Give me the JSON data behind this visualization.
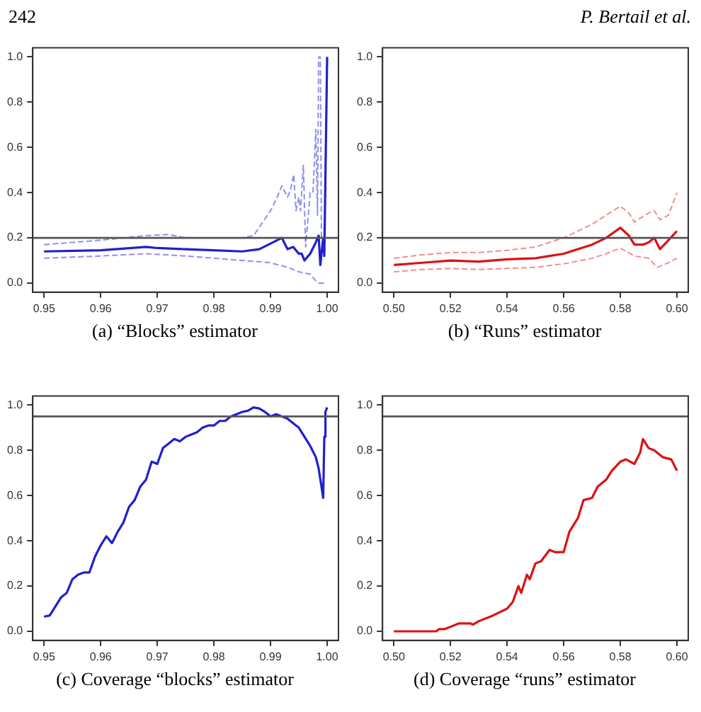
{
  "chart_data": [
    {
      "type": "line",
      "title": "(a) “Blocks” estimator",
      "annotations": [
        "242"
      ],
      "xlim": [
        0.948,
        1.002
      ],
      "ylim": [
        -0.04,
        1.04
      ],
      "xticks": [
        {
          "value": 0.95,
          "label": "0.95"
        },
        {
          "value": 0.96,
          "label": "0.96"
        },
        {
          "value": 0.97,
          "label": "0.97"
        },
        {
          "value": 0.98,
          "label": "0.98"
        },
        {
          "value": 0.99,
          "label": "0.99"
        },
        {
          "value": 1,
          "label": "1.00"
        }
      ],
      "yticks": [
        {
          "value": 0,
          "label": "0.0"
        },
        {
          "value": 0.2,
          "label": "0.2"
        },
        {
          "value": 0.4,
          "label": "0.4"
        },
        {
          "value": 0.6,
          "label": "0.6"
        },
        {
          "value": 0.8,
          "label": "0.8"
        },
        {
          "value": 1,
          "label": "1.0"
        }
      ],
      "grid": false,
      "legend": false,
      "marker": "none",
      "ref_lines": [
        {
          "axis": "y",
          "value": 0.2,
          "color": "#555555"
        }
      ],
      "series": [
        {
          "color": "#9090ee",
          "line_style": "dashed",
          "x": [
            0.95,
            0.96,
            0.968,
            0.972,
            0.975,
            0.98,
            0.985,
            0.987,
            0.99,
            0.991,
            0.992,
            0.993,
            0.9935,
            0.9941,
            0.9945,
            0.995,
            0.9953,
            0.9958,
            0.9962,
            0.997,
            0.9975,
            0.998,
            0.9983,
            0.9985,
            0.9988,
            0.999
          ],
          "values": [
            0.17,
            0.19,
            0.21,
            0.215,
            0.2,
            0.2,
            0.2,
            0.21,
            0.32,
            0.37,
            0.43,
            0.38,
            0.41,
            0.48,
            0.32,
            0.38,
            0.32,
            0.52,
            0.16,
            0.4,
            0.4,
            0.68,
            0.3,
            1.0,
            1.0,
            0.2
          ]
        },
        {
          "color": "#9090ee",
          "line_style": "dashed",
          "x": [
            0.95,
            0.96,
            0.968,
            0.975,
            0.98,
            0.985,
            0.99,
            0.993,
            0.995,
            0.997,
            0.998,
            0.9985,
            0.9998
          ],
          "values": [
            0.11,
            0.12,
            0.13,
            0.12,
            0.11,
            0.1,
            0.09,
            0.07,
            0.05,
            0.04,
            0.01,
            0.0,
            0.0
          ]
        },
        {
          "color": "#2020cc",
          "line_style": "solid",
          "x": [
            0.95,
            0.96,
            0.968,
            0.97,
            0.975,
            0.98,
            0.985,
            0.988,
            0.99,
            0.992,
            0.993,
            0.994,
            0.995,
            0.9955,
            0.996,
            0.997,
            0.998,
            0.9985,
            0.9988,
            0.9993,
            0.9995,
            1.0
          ],
          "values": [
            0.14,
            0.145,
            0.16,
            0.155,
            0.15,
            0.145,
            0.14,
            0.15,
            0.175,
            0.2,
            0.15,
            0.16,
            0.13,
            0.13,
            0.1,
            0.13,
            0.18,
            0.21,
            0.08,
            0.2,
            0.12,
            1.0
          ]
        }
      ]
    },
    {
      "type": "line",
      "title": "(b) “Runs” estimator",
      "annotations": [
        "P. Bertail et al."
      ],
      "xlim": [
        0.496,
        0.604
      ],
      "ylim": [
        -0.04,
        1.04
      ],
      "xticks": [
        {
          "value": 0.5,
          "label": "0.50"
        },
        0.52,
        0.54,
        0.56,
        0.58,
        {
          "value": 0.6,
          "label": "0.60"
        }
      ],
      "yticks": [
        {
          "value": 0,
          "label": "0.0"
        },
        {
          "value": 0.2,
          "label": "0.2"
        },
        {
          "value": 0.4,
          "label": "0.4"
        },
        {
          "value": 0.6,
          "label": "0.6"
        },
        {
          "value": 0.8,
          "label": "0.8"
        },
        {
          "value": 1,
          "label": "1.0"
        }
      ],
      "grid": false,
      "legend": false,
      "marker": "none",
      "ref_lines": [
        {
          "axis": "y",
          "value": 0.2,
          "color": "#555555"
        }
      ],
      "series": [
        {
          "color": "#f09090",
          "line_style": "dashed",
          "x": [
            0.5,
            0.51,
            0.52,
            0.53,
            0.54,
            0.55,
            0.56,
            0.565,
            0.57,
            0.575,
            0.58,
            0.583,
            0.585,
            0.59,
            0.592,
            0.594,
            0.597,
            0.6
          ],
          "values": [
            0.11,
            0.125,
            0.135,
            0.135,
            0.145,
            0.16,
            0.2,
            0.23,
            0.26,
            0.3,
            0.34,
            0.31,
            0.27,
            0.31,
            0.32,
            0.28,
            0.3,
            0.4
          ]
        },
        {
          "color": "#f09090",
          "line_style": "dashed",
          "x": [
            0.5,
            0.51,
            0.52,
            0.53,
            0.54,
            0.55,
            0.56,
            0.57,
            0.575,
            0.58,
            0.585,
            0.59,
            0.593,
            0.597,
            0.6
          ],
          "values": [
            0.05,
            0.06,
            0.065,
            0.06,
            0.065,
            0.07,
            0.085,
            0.11,
            0.13,
            0.155,
            0.12,
            0.11,
            0.07,
            0.09,
            0.11
          ]
        },
        {
          "color": "#dd1111",
          "line_style": "solid",
          "x": [
            0.5,
            0.51,
            0.52,
            0.53,
            0.54,
            0.55,
            0.555,
            0.56,
            0.565,
            0.57,
            0.575,
            0.58,
            0.583,
            0.585,
            0.588,
            0.59,
            0.592,
            0.594,
            0.597,
            0.6
          ],
          "values": [
            0.08,
            0.09,
            0.1,
            0.095,
            0.105,
            0.11,
            0.12,
            0.13,
            0.15,
            0.17,
            0.2,
            0.245,
            0.21,
            0.17,
            0.17,
            0.18,
            0.2,
            0.15,
            0.19,
            0.23
          ]
        }
      ]
    },
    {
      "type": "line",
      "title": "(c) Coverage “blocks” estimator",
      "xlim": [
        0.948,
        1.002
      ],
      "ylim": [
        -0.04,
        1.04
      ],
      "xticks": [
        {
          "value": 0.95,
          "label": "0.95"
        },
        {
          "value": 0.96,
          "label": "0.96"
        },
        {
          "value": 0.97,
          "label": "0.97"
        },
        {
          "value": 0.98,
          "label": "0.98"
        },
        {
          "value": 0.99,
          "label": "0.99"
        },
        {
          "value": 1,
          "label": "1.00"
        }
      ],
      "yticks": [
        {
          "value": 0,
          "label": "0.0"
        },
        {
          "value": 0.2,
          "label": "0.2"
        },
        {
          "value": 0.4,
          "label": "0.4"
        },
        {
          "value": 0.6,
          "label": "0.6"
        },
        {
          "value": 0.8,
          "label": "0.8"
        },
        {
          "value": 1,
          "label": "1.0"
        }
      ],
      "grid": false,
      "legend": false,
      "marker": "none",
      "ref_lines": [
        {
          "axis": "y",
          "value": 0.95,
          "color": "#555555"
        }
      ],
      "series": [
        {
          "color": "#2020cc",
          "line_style": "solid",
          "x": [
            0.95,
            0.951,
            0.952,
            0.953,
            0.954,
            0.955,
            0.956,
            0.957,
            0.958,
            0.959,
            0.96,
            0.961,
            0.962,
            0.963,
            0.964,
            0.965,
            0.966,
            0.967,
            0.968,
            0.969,
            0.97,
            0.971,
            0.972,
            0.973,
            0.974,
            0.975,
            0.976,
            0.977,
            0.978,
            0.979,
            0.98,
            0.981,
            0.982,
            0.983,
            0.984,
            0.985,
            0.986,
            0.987,
            0.988,
            0.989,
            0.99,
            0.991,
            0.992,
            0.993,
            0.994,
            0.995,
            0.996,
            0.997,
            0.998,
            0.9985,
            0.999,
            0.9993,
            0.9995,
            0.9997,
            1.0
          ],
          "values": [
            0.065,
            0.07,
            0.11,
            0.15,
            0.17,
            0.23,
            0.25,
            0.26,
            0.26,
            0.33,
            0.38,
            0.42,
            0.39,
            0.44,
            0.48,
            0.55,
            0.58,
            0.64,
            0.67,
            0.75,
            0.74,
            0.81,
            0.83,
            0.85,
            0.84,
            0.86,
            0.87,
            0.88,
            0.9,
            0.91,
            0.91,
            0.93,
            0.93,
            0.95,
            0.96,
            0.97,
            0.975,
            0.99,
            0.985,
            0.97,
            0.95,
            0.96,
            0.95,
            0.94,
            0.92,
            0.9,
            0.86,
            0.82,
            0.77,
            0.72,
            0.64,
            0.59,
            0.86,
            0.97,
            0.99
          ]
        }
      ]
    },
    {
      "type": "line",
      "title": "(d) Coverage “runs” estimator",
      "xlim": [
        0.496,
        0.604
      ],
      "ylim": [
        -0.04,
        1.04
      ],
      "xticks": [
        {
          "value": 0.5,
          "label": "0.50"
        },
        0.52,
        0.54,
        0.56,
        0.58,
        {
          "value": 0.6,
          "label": "0.60"
        }
      ],
      "yticks": [
        {
          "value": 0,
          "label": "0.0"
        },
        {
          "value": 0.2,
          "label": "0.2"
        },
        {
          "value": 0.4,
          "label": "0.4"
        },
        {
          "value": 0.6,
          "label": "0.6"
        },
        {
          "value": 0.8,
          "label": "0.8"
        },
        {
          "value": 1,
          "label": "1.0"
        }
      ],
      "grid": false,
      "legend": false,
      "marker": "none",
      "ref_lines": [
        {
          "axis": "y",
          "value": 0.95,
          "color": "#555555"
        }
      ],
      "series": [
        {
          "color": "#dd1111",
          "line_style": "solid",
          "x": [
            0.5,
            0.51,
            0.515,
            0.516,
            0.518,
            0.52,
            0.523,
            0.527,
            0.528,
            0.53,
            0.535,
            0.54,
            0.542,
            0.544,
            0.545,
            0.547,
            0.548,
            0.55,
            0.552,
            0.555,
            0.557,
            0.56,
            0.562,
            0.565,
            0.567,
            0.57,
            0.572,
            0.575,
            0.577,
            0.58,
            0.582,
            0.585,
            0.587,
            0.588,
            0.59,
            0.592,
            0.595,
            0.598,
            0.6
          ],
          "values": [
            0,
            0,
            0,
            0.01,
            0.01,
            0.02,
            0.035,
            0.035,
            0.03,
            0.045,
            0.07,
            0.1,
            0.13,
            0.2,
            0.17,
            0.25,
            0.23,
            0.3,
            0.31,
            0.36,
            0.35,
            0.35,
            0.44,
            0.5,
            0.58,
            0.59,
            0.64,
            0.67,
            0.71,
            0.75,
            0.76,
            0.74,
            0.79,
            0.85,
            0.81,
            0.8,
            0.77,
            0.76,
            0.71
          ]
        }
      ]
    }
  ]
}
